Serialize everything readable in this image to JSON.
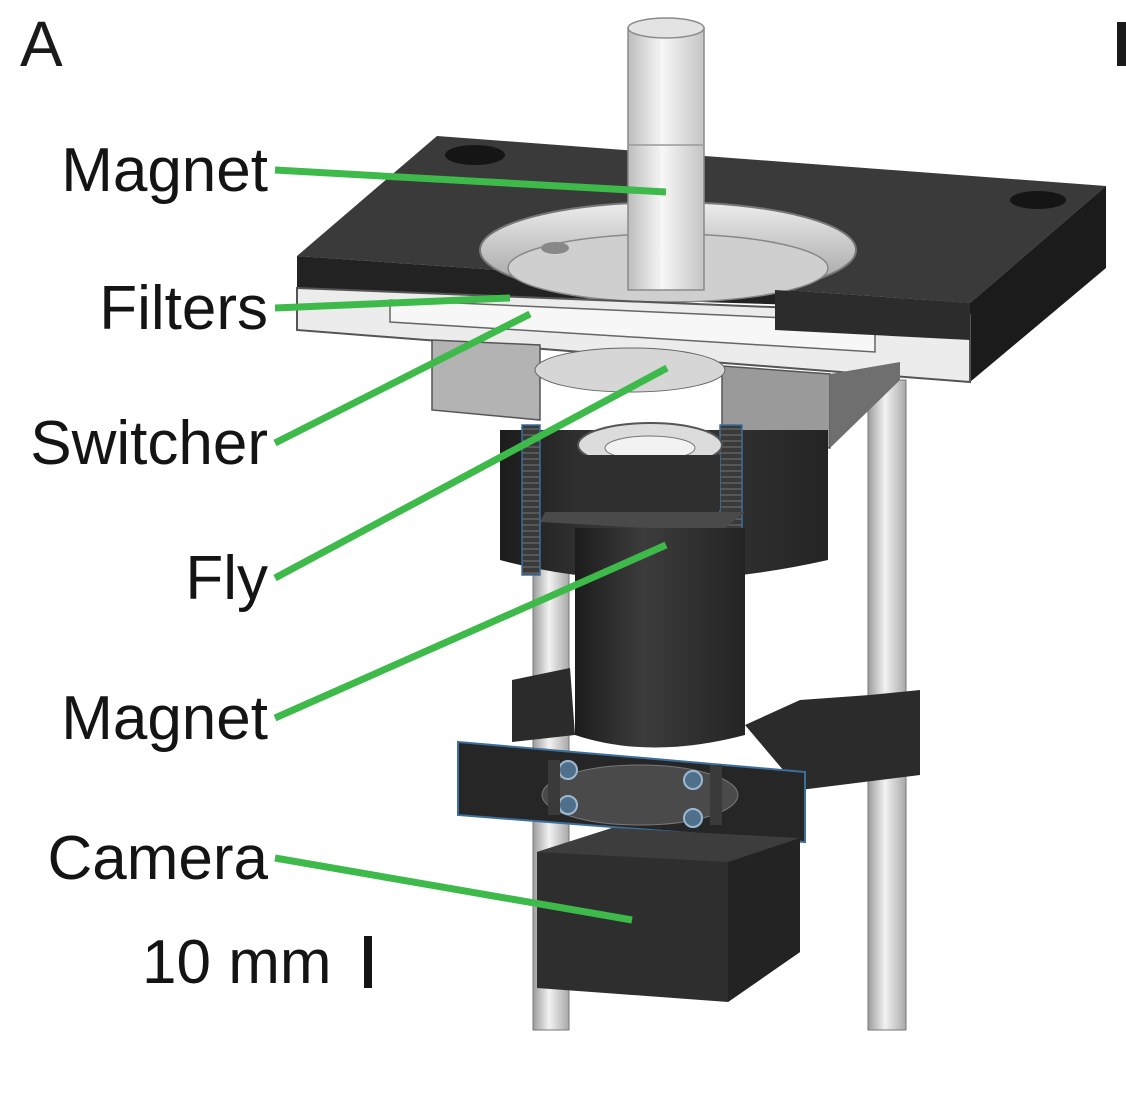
{
  "figure": {
    "panel_letter": "A",
    "labels": [
      "Magnet",
      "Filters",
      "Switcher",
      "Fly",
      "Magnet",
      "Camera"
    ],
    "scale_bar": "10 mm"
  },
  "colors": {
    "leader_line": "#3dba4a",
    "dark_part": "#2e2e2e",
    "light_part": "#d8d8d8",
    "rod": "#cfcfcf",
    "outline": "#3b6f9c"
  }
}
